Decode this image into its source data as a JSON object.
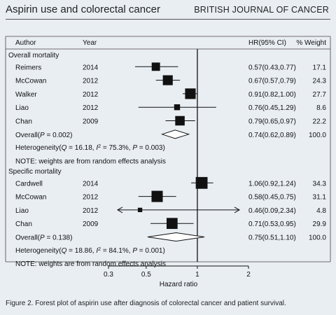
{
  "header": {
    "title": "Aspirin use and colorectal cancer",
    "journal": "BRITISH JOURNAL OF CANCER"
  },
  "caption": "Figure 2. Forest plot of aspirin use after diagnosis of colorectal cancer and patient survival.",
  "colors": {
    "background": "#e9eef3",
    "ink": "#111111"
  },
  "chart_data": {
    "type": "forest",
    "columns": {
      "author": "Author",
      "year": "Year",
      "hr": "HR(95% CI)",
      "weight": "% Weight"
    },
    "xlabel": "Hazard ratio",
    "x_scale": "log",
    "xlim": [
      0.3,
      2
    ],
    "xticks": [
      "0.3",
      "0.5",
      "1",
      "2"
    ],
    "xtick_values": [
      0.3,
      0.5,
      1,
      2
    ],
    "reference_line": 1,
    "sections": [
      {
        "label": "Overall mortality",
        "studies": [
          {
            "author": "Reimers",
            "year": "2014",
            "hr": 0.57,
            "lo": 0.43,
            "hi": 0.77,
            "hr_text": "0.57(0.43,0.77)",
            "weight": 17.1,
            "weight_text": "17.1"
          },
          {
            "author": "McCowan",
            "year": "2012",
            "hr": 0.67,
            "lo": 0.57,
            "hi": 0.79,
            "hr_text": "0.67(0.57,0.79)",
            "weight": 24.3,
            "weight_text": "24.3"
          },
          {
            "author": "Walker",
            "year": "2012",
            "hr": 0.91,
            "lo": 0.82,
            "hi": 1.0,
            "hr_text": "0.91(0.82,1.00)",
            "weight": 27.7,
            "weight_text": "27.7"
          },
          {
            "author": "Liao",
            "year": "2012",
            "hr": 0.76,
            "lo": 0.45,
            "hi": 1.29,
            "hr_text": "0.76(0.45,1.29)",
            "weight": 8.6,
            "weight_text": "8.6"
          },
          {
            "author": "Chan",
            "year": "2009",
            "hr": 0.79,
            "lo": 0.65,
            "hi": 0.97,
            "hr_text": "0.79(0.65,0.97)",
            "weight": 22.2,
            "weight_text": "22.2"
          }
        ],
        "overall": {
          "label": "Overall(P = 0.002)",
          "label_pre": "Overall(",
          "label_p": "P",
          "label_post": " = 0.002)",
          "hr": 0.74,
          "lo": 0.62,
          "hi": 0.89,
          "hr_text": "0.74(0.62,0.89)",
          "weight_text": "100.0"
        },
        "heterogeneity": {
          "pre": "Heterogeneity(",
          "q": "Q",
          "mid1": " = 16.18, ",
          "i": "I",
          "sup": "2",
          "mid2": " = 75.3%, ",
          "p": "P",
          "post": " = 0.003)"
        },
        "note": "NOTE: weights are from random effects analysis"
      },
      {
        "label": "Specific mortality",
        "studies": [
          {
            "author": "Cardwell",
            "year": "2014",
            "hr": 1.06,
            "lo": 0.92,
            "hi": 1.24,
            "hr_text": "1.06(0.92,1.24)",
            "weight": 34.3,
            "weight_text": "34.3"
          },
          {
            "author": "McCowan",
            "year": "2012",
            "hr": 0.58,
            "lo": 0.45,
            "hi": 0.75,
            "hr_text": "0.58(0.45,0.75)",
            "weight": 31.1,
            "weight_text": "31.1"
          },
          {
            "author": "Liao",
            "year": "2012",
            "hr": 0.46,
            "lo": 0.09,
            "hi": 2.34,
            "hr_text": "0.46(0.09,2.34)",
            "weight": 4.8,
            "weight_text": "4.8",
            "ci_truncated": true
          },
          {
            "author": "Chan",
            "year": "2009",
            "hr": 0.71,
            "lo": 0.53,
            "hi": 0.95,
            "hr_text": "0.71(0.53,0.95)",
            "weight": 29.9,
            "weight_text": "29.9"
          }
        ],
        "overall": {
          "label": "Overall(P = 0.138)",
          "label_pre": "Overall(",
          "label_p": "P",
          "label_post": " = 0.138)",
          "hr": 0.75,
          "lo": 0.51,
          "hi": 1.1,
          "hr_text": "0.75(0.51,1.10)",
          "weight_text": "100.0"
        },
        "heterogeneity": {
          "pre": "Heterogeneity(",
          "q": "Q",
          "mid1": " = 18.86, ",
          "i": "I",
          "sup": "2",
          "mid2": " = 84.1%, ",
          "p": "P",
          "post": " = 0.001)"
        },
        "note": "NOTE: weights are from random effects analysis"
      }
    ]
  }
}
